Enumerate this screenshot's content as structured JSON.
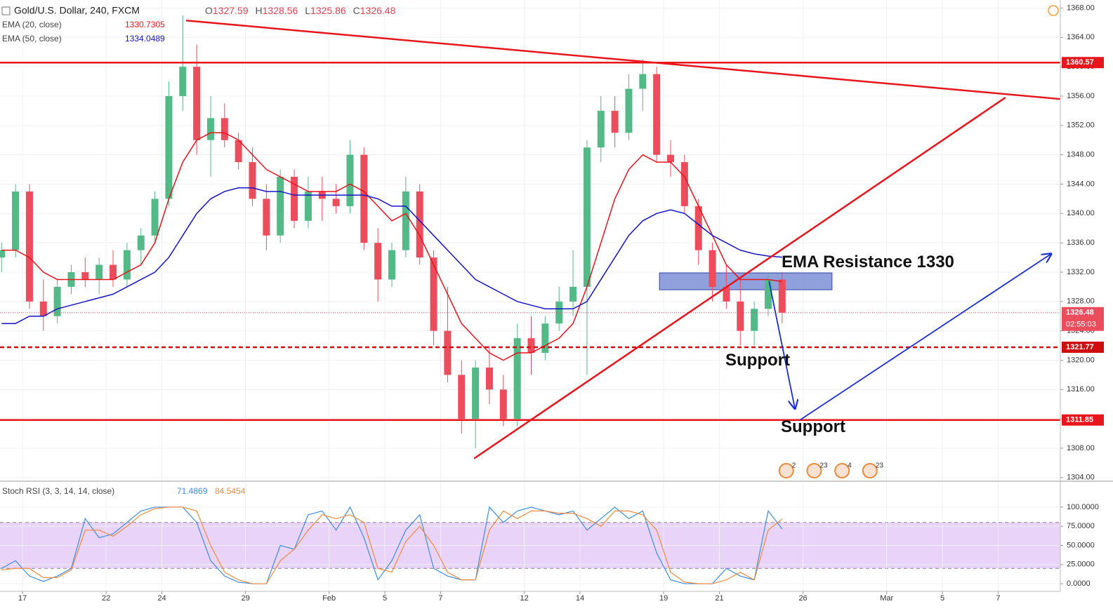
{
  "chart_data": [
    {
      "type": "candlestick",
      "title": "Gold/U.S. Dollar, 240, FXCM",
      "ohlc_header": [
        {
          "label": "O",
          "value": 1327.59
        },
        {
          "label": "H",
          "value": 1328.56
        },
        {
          "label": "L",
          "value": 1325.86
        },
        {
          "label": "C",
          "value": 1326.48
        }
      ],
      "x": [
        -0.75,
        -0.25,
        0.25,
        0.75,
        1.25,
        1.75,
        2.25,
        2.75,
        3.25,
        3.75,
        4.25,
        4.75,
        5.25,
        5.75,
        6.25,
        6.75,
        7.25,
        7.75,
        8.25,
        8.75,
        9.25,
        9.75,
        10.25,
        10.75,
        11.25,
        11.75,
        12.25,
        12.75,
        13.25,
        13.75,
        14.25,
        14.75,
        15.25,
        15.75,
        16.25,
        16.75,
        17.25,
        17.75,
        18.25,
        18.75,
        19.25,
        19.75,
        20.25,
        20.75,
        21.25,
        21.75,
        22.25,
        22.75,
        23.25,
        23.75,
        24.25,
        24.75,
        25.25,
        25.75,
        26.25,
        26.75,
        27.25
      ],
      "open": [
        1334,
        1335,
        1343,
        1328,
        1326,
        1330,
        1332,
        1331,
        1333,
        1331,
        1335,
        1337,
        1342,
        1356,
        1360,
        1350,
        1353,
        1350,
        1347,
        1342,
        1337,
        1345,
        1339,
        1343,
        1342,
        1341,
        1348,
        1336,
        1331,
        1335,
        1343,
        1334,
        1324,
        1318,
        1312,
        1319,
        1316,
        1312,
        1323,
        1321,
        1325,
        1328,
        1330,
        1349,
        1354,
        1351,
        1357,
        1359,
        1348,
        1347,
        1341,
        1335,
        1330,
        1328,
        1324,
        1327,
        1331
      ],
      "high": [
        1336,
        1344,
        1344,
        1331,
        1331,
        1333,
        1334,
        1334,
        1335,
        1336,
        1338,
        1343,
        1358,
        1367,
        1363,
        1356,
        1355,
        1351,
        1349,
        1344,
        1346,
        1346,
        1345,
        1345,
        1344,
        1350,
        1349,
        1338,
        1336,
        1345,
        1344,
        1335,
        1330,
        1320,
        1320,
        1322,
        1318,
        1325,
        1326,
        1326,
        1330,
        1335,
        1350,
        1356,
        1356,
        1359,
        1361,
        1360,
        1350,
        1348,
        1342,
        1336,
        1333,
        1331,
        1328,
        1332,
        1332
      ],
      "low": [
        1332,
        1334,
        1327,
        1324,
        1325,
        1329,
        1330,
        1329,
        1330,
        1330,
        1333,
        1336,
        1341,
        1354,
        1348,
        1345,
        1349,
        1346,
        1341,
        1335,
        1336,
        1338,
        1338,
        1339,
        1340,
        1340,
        1335,
        1328,
        1330,
        1334,
        1333,
        1322,
        1317,
        1310,
        1308,
        1314,
        1311,
        1311,
        1318,
        1320,
        1324,
        1326,
        1318,
        1347,
        1349,
        1350,
        1354,
        1347,
        1345,
        1340,
        1333,
        1328,
        1327,
        1322,
        1322,
        1326,
        1325
      ],
      "close": [
        1335,
        1343,
        1328,
        1326,
        1330,
        1332,
        1331,
        1333,
        1331,
        1335,
        1337,
        1342,
        1356,
        1360,
        1350,
        1353,
        1350,
        1347,
        1342,
        1337,
        1345,
        1339,
        1343,
        1342,
        1341,
        1348,
        1336,
        1331,
        1335,
        1343,
        1334,
        1324,
        1318,
        1312,
        1319,
        1316,
        1312,
        1323,
        1321,
        1325,
        1328,
        1330,
        1349,
        1354,
        1351,
        1357,
        1359,
        1348,
        1347,
        1341,
        1335,
        1330,
        1328,
        1324,
        1327,
        1331,
        1326.48
      ],
      "up_color": "#53b987",
      "down_color": "#eb4d5c",
      "series": [
        {
          "name": "EMA (20, close)",
          "value": 1330.7305,
          "color": "#e8151b",
          "values": [
            1335,
            1335,
            1334,
            1332,
            1331,
            1331,
            1331,
            1331,
            1331,
            1332,
            1333,
            1336,
            1342,
            1347,
            1350,
            1351,
            1351,
            1350,
            1348,
            1346,
            1345,
            1344,
            1343,
            1343,
            1343,
            1344,
            1343,
            1341,
            1339,
            1340,
            1337,
            1333,
            1329,
            1325,
            1323,
            1321,
            1320,
            1321,
            1321,
            1322,
            1323,
            1325,
            1330,
            1336,
            1342,
            1346,
            1348,
            1347,
            1347,
            1345,
            1341,
            1337,
            1333,
            1331,
            1331,
            1331,
            1330.7305
          ]
        },
        {
          "name": "EMA (50, close)",
          "value": 1334.0489,
          "color": "#1515c8",
          "values": [
            1325,
            1325,
            1326,
            1326,
            1327,
            1327.5,
            1328,
            1328.5,
            1329,
            1330,
            1331,
            1332,
            1334,
            1337,
            1340,
            1342,
            1343,
            1343.5,
            1343.5,
            1343,
            1343,
            1342.5,
            1342.5,
            1342.5,
            1342.5,
            1342.5,
            1342.5,
            1342,
            1341,
            1341,
            1339,
            1337,
            1335,
            1333,
            1331,
            1330,
            1329,
            1328,
            1327.5,
            1327,
            1327,
            1327,
            1328,
            1331,
            1334,
            1337,
            1339,
            1340,
            1340.5,
            1340,
            1338.5,
            1337,
            1336,
            1335,
            1334.5,
            1334.2,
            1334.0489
          ]
        }
      ],
      "xlim": [
        -0.806,
        37.23
      ],
      "ylim": [
        1303.6,
        1369.1
      ],
      "yticks": [
        {
          "value": 1304,
          "label": "1304.00"
        },
        {
          "value": 1308,
          "label": "1308.00"
        },
        {
          "value": 1312,
          "label": "1312.00"
        },
        {
          "value": 1316,
          "label": "1316.00"
        },
        {
          "value": 1320,
          "label": "1320.00"
        },
        {
          "value": 1324,
          "label": "1324.00"
        },
        {
          "value": 1328,
          "label": "1328.00"
        },
        {
          "value": 1332,
          "label": "1332.00"
        },
        {
          "value": 1336,
          "label": "1336.00"
        },
        {
          "value": 1340,
          "label": "1340.00"
        },
        {
          "value": 1344,
          "label": "1344.00"
        },
        {
          "value": 1348,
          "label": "1348.00"
        },
        {
          "value": 1352,
          "label": "1352.00"
        },
        {
          "value": 1356,
          "label": "1356.00"
        },
        {
          "value": 1360,
          "label": "1360.00"
        },
        {
          "value": 1364,
          "label": "1364.00"
        },
        {
          "value": 1368,
          "label": "1368.00"
        }
      ],
      "levels": [
        {
          "value": 1360.57,
          "style": "solid",
          "color": "#e8151b"
        },
        {
          "value": 1321.77,
          "style": "dashed",
          "color": "#d00d0d"
        },
        {
          "value": 1311.85,
          "style": "solid",
          "color": "#e8151b"
        }
      ],
      "last_price": 1326.48,
      "countdown": "02:55:03",
      "trendlines": [
        {
          "x": [
            5.87,
            37.23
          ],
          "y": [
            1366.3,
            1355.6
          ],
          "color": "#e8151b"
        },
        {
          "x": [
            16.2,
            35.26
          ],
          "y": [
            1306.6,
            1355.8
          ],
          "color": "#e8151b"
        }
      ],
      "arrows": [
        {
          "x": [
            26.78,
            27.71
          ],
          "y": [
            1330.8,
            1313.4
          ],
          "color": "#1a2fd1"
        },
        {
          "x": [
            27.91,
            36.9
          ],
          "y": [
            1311.9,
            1334.5
          ],
          "color": "#1a2fd1"
        }
      ],
      "zone": {
        "x": [
          22.85,
          29.04
        ],
        "y": [
          1329.6,
          1331.9
        ]
      },
      "annotations": [
        "EMA Resistance 1330",
        "Support",
        "Support"
      ],
      "events": [
        {
          "x": 27.4,
          "label": "2"
        },
        {
          "x": 28.4,
          "label": "23"
        },
        {
          "x": 29.4,
          "label": "4"
        },
        {
          "x": 30.4,
          "label": "23"
        }
      ],
      "grid": true
    },
    {
      "type": "line",
      "title": "Stoch RSI (3, 3, 14, 14, close)",
      "x": [
        -0.75,
        -0.25,
        0.25,
        0.75,
        1.25,
        1.75,
        2.25,
        2.75,
        3.25,
        3.75,
        4.25,
        4.75,
        5.25,
        5.75,
        6.25,
        6.75,
        7.25,
        7.75,
        8.25,
        8.75,
        9.25,
        9.75,
        10.25,
        10.75,
        11.25,
        11.75,
        12.25,
        12.75,
        13.25,
        13.75,
        14.25,
        14.75,
        15.25,
        15.75,
        16.25,
        16.75,
        17.25,
        17.75,
        18.25,
        18.75,
        19.25,
        19.75,
        20.25,
        20.75,
        21.25,
        21.75,
        22.25,
        22.75,
        23.25,
        23.75,
        24.25,
        24.75,
        25.25,
        25.75,
        26.25,
        26.75,
        27.25
      ],
      "series": [
        {
          "value": 71.4869,
          "color": "#3c8ee6",
          "values": [
            20,
            30,
            10,
            3,
            10,
            20,
            85,
            60,
            65,
            80,
            95,
            100,
            100,
            100,
            80,
            30,
            10,
            2,
            0,
            0,
            50,
            45,
            90,
            95,
            70,
            100,
            60,
            5,
            30,
            70,
            90,
            20,
            10,
            5,
            5,
            100,
            80,
            95,
            100,
            95,
            90,
            95,
            70,
            85,
            100,
            85,
            95,
            40,
            5,
            0,
            0,
            0,
            20,
            10,
            5,
            95,
            71.4869
          ]
        },
        {
          "value": 84.5454,
          "color": "#f08a3c",
          "values": [
            18,
            20,
            20,
            8,
            8,
            18,
            70,
            70,
            62,
            75,
            90,
            98,
            100,
            100,
            95,
            50,
            15,
            5,
            0,
            0,
            30,
            45,
            70,
            90,
            85,
            90,
            80,
            20,
            15,
            55,
            75,
            50,
            15,
            5,
            5,
            70,
            95,
            85,
            95,
            95,
            92,
            92,
            85,
            75,
            95,
            95,
            90,
            70,
            15,
            2,
            0,
            0,
            5,
            15,
            5,
            70,
            84.5454
          ]
        }
      ],
      "band": [
        20,
        80
      ],
      "band_color": "#e3c8f7",
      "xlim": [
        -0.806,
        37.23
      ],
      "ylim": [
        -10,
        132
      ],
      "yticks": [
        {
          "value": 0,
          "label": "0.0000"
        },
        {
          "value": 25,
          "label": "25.0000"
        },
        {
          "value": 50,
          "label": "50.0000"
        },
        {
          "value": 75,
          "label": "75.0000"
        },
        {
          "value": 100,
          "label": "100.0000"
        }
      ],
      "xticks": [
        {
          "value": 0,
          "label": "17"
        },
        {
          "value": 3,
          "label": "22"
        },
        {
          "value": 5,
          "label": "24"
        },
        {
          "value": 8,
          "label": "29"
        },
        {
          "value": 11,
          "label": "Feb"
        },
        {
          "value": 13,
          "label": "5"
        },
        {
          "value": 15,
          "label": "7"
        },
        {
          "value": 18,
          "label": "12"
        },
        {
          "value": 20,
          "label": "14"
        },
        {
          "value": 23,
          "label": "19"
        },
        {
          "value": 25,
          "label": "21"
        },
        {
          "value": 28,
          "label": "26"
        },
        {
          "value": 31,
          "label": "Mar"
        },
        {
          "value": 33,
          "label": "5"
        },
        {
          "value": 35,
          "label": "7"
        }
      ],
      "grid": true
    }
  ]
}
